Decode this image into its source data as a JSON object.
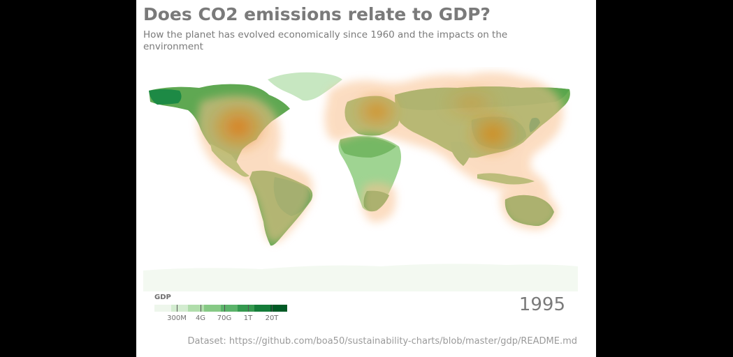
{
  "title": "Does CO2 emissions relate to GDP?",
  "subtitle": "How the planet has evolved economically since 1960 and the impacts on the environment",
  "year": "1995",
  "dataset": "Dataset: https://github.com/boa50/sustainability-charts/blob/master/gdp/README.md",
  "legend": {
    "title": "GDP",
    "ticks": [
      "300M",
      "4G",
      "70G",
      "1T",
      "20T"
    ],
    "colors": [
      "#eef6ec",
      "#d3ecd0",
      "#b0ddab",
      "#86c985",
      "#5bb36a",
      "#35994f",
      "#157c39",
      "#005a25"
    ]
  },
  "colors": {
    "emissions_halo": "#f9b97a",
    "emissions_core": "#e07b10",
    "land_low": "#c5e6c0",
    "land_mid": "#75b864",
    "land_high": "#1b8a45",
    "antarctica": "#f3f9f1"
  }
}
